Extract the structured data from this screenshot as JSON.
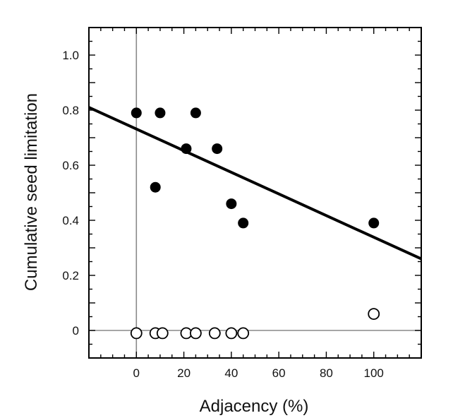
{
  "chart_data": {
    "type": "scatter",
    "title": "",
    "xlabel": "Adjacency (%)",
    "ylabel": "Cumulative seed limitation",
    "xlim": [
      -20,
      120
    ],
    "ylim": [
      -0.1,
      1.1
    ],
    "x_ticks": [
      0,
      20,
      40,
      60,
      80,
      100
    ],
    "y_ticks": [
      0,
      0.2,
      0.4,
      0.6,
      0.8,
      1.0
    ],
    "x_tick_labels": [
      "0",
      "20",
      "40",
      "60",
      "80",
      "100"
    ],
    "y_tick_labels": [
      "0",
      "0.2",
      "0.4",
      "0.6",
      "0.8",
      "1.0"
    ],
    "reference_lines": {
      "x": 0,
      "y": 0
    },
    "series": [
      {
        "marker": "filled-circle",
        "color": "#000000",
        "points": [
          {
            "x": 0,
            "y": 0.79
          },
          {
            "x": 10,
            "y": 0.79
          },
          {
            "x": 25,
            "y": 0.79
          },
          {
            "x": 21,
            "y": 0.66
          },
          {
            "x": 34,
            "y": 0.66
          },
          {
            "x": 8,
            "y": 0.52
          },
          {
            "x": 40,
            "y": 0.46
          },
          {
            "x": 45,
            "y": 0.39
          },
          {
            "x": 100,
            "y": 0.39
          }
        ]
      },
      {
        "marker": "open-circle",
        "color": "#000000",
        "points": [
          {
            "x": 0,
            "y": -0.01
          },
          {
            "x": 8,
            "y": -0.01
          },
          {
            "x": 11,
            "y": -0.01
          },
          {
            "x": 21,
            "y": -0.01
          },
          {
            "x": 25,
            "y": -0.01
          },
          {
            "x": 33,
            "y": -0.01
          },
          {
            "x": 40,
            "y": -0.01
          },
          {
            "x": 45,
            "y": -0.01
          },
          {
            "x": 100,
            "y": 0.06
          }
        ]
      }
    ],
    "fit_line": {
      "points": [
        {
          "x": -20,
          "y": 0.81
        },
        {
          "x": 120,
          "y": 0.26
        }
      ]
    }
  }
}
